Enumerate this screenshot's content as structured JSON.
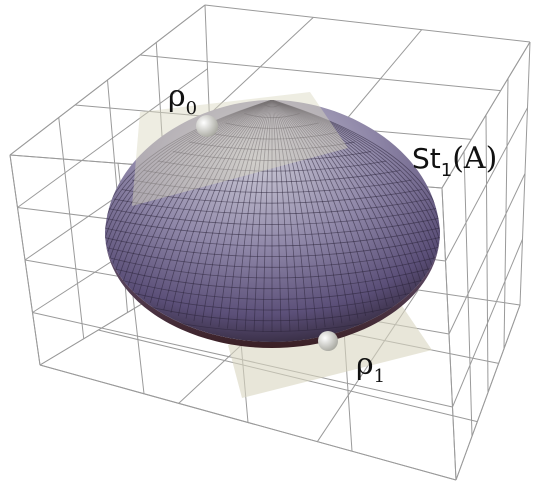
{
  "labels": [
    {
      "base": "ρ",
      "sub": "0"
    },
    {
      "base": "St",
      "sub": "1",
      "rest": "(A)"
    },
    {
      "base": "ρ",
      "sub": "1"
    }
  ]
}
